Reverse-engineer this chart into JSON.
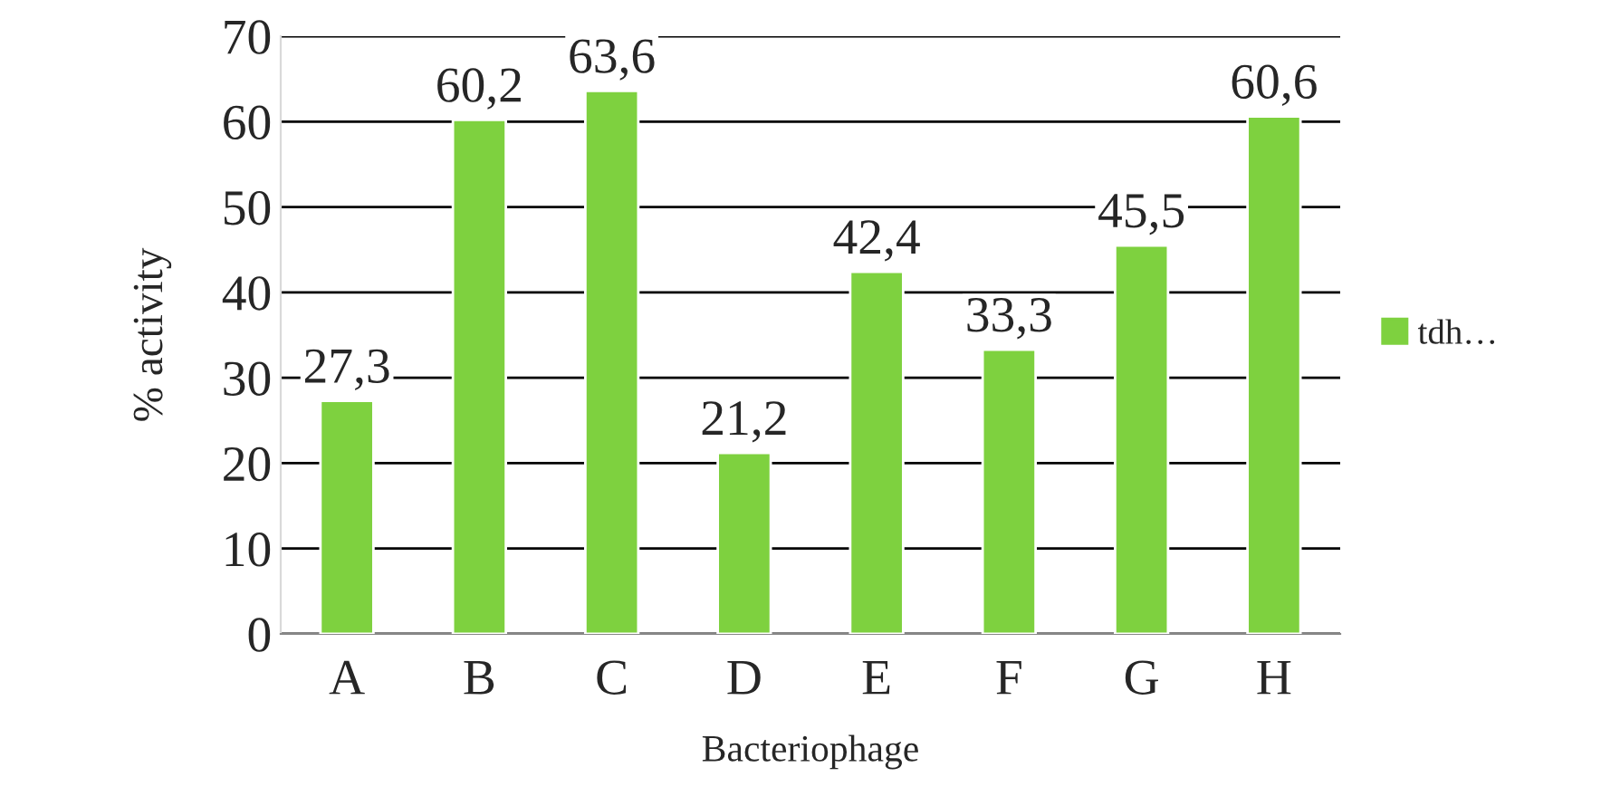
{
  "chart_data": {
    "type": "bar",
    "xlabel": "Bacteriophage",
    "ylabel": "% activity",
    "categories": [
      "A",
      "B",
      "C",
      "D",
      "E",
      "F",
      "G",
      "H"
    ],
    "series": [
      {
        "name": "tdh…",
        "color": "#7ed13f",
        "values": [
          27.3,
          60.2,
          63.6,
          21.2,
          42.4,
          33.3,
          45.5,
          60.6
        ],
        "value_labels": [
          "27,3",
          "60,2",
          "63,6",
          "21,2",
          "42,4",
          "33,3",
          "45,5",
          "60,6"
        ]
      }
    ],
    "ylim": [
      0,
      70
    ],
    "yticks": [
      0,
      10,
      20,
      30,
      40,
      50,
      60,
      70
    ],
    "grid": "y",
    "legend": "right"
  }
}
